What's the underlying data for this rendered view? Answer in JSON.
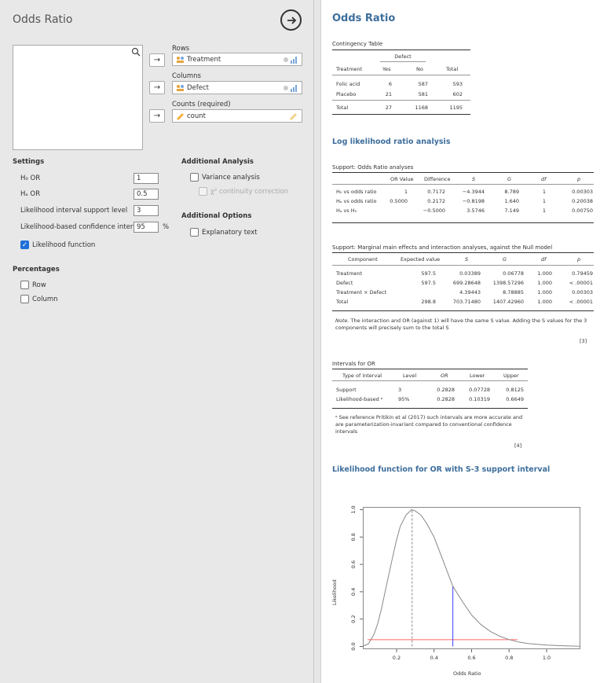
{
  "left": {
    "title": "Odds Ratio",
    "rows_label": "Rows",
    "rows_value": "Treatment",
    "columns_label": "Columns",
    "columns_value": "Defect",
    "counts_label": "Counts (required)",
    "counts_value": "count",
    "arrow": "→",
    "settings": {
      "title": "Settings",
      "h0_label": "H₀ OR",
      "h0_value": "1",
      "ha_label": "Hₐ OR",
      "ha_value": "0.5",
      "support_label": "Likelihood interval support level",
      "support_value": "3",
      "ci_label": "Likelihood-based confidence interval",
      "ci_value": "95",
      "ci_unit": "%",
      "lf_label": "Likelihood function",
      "lf_checked": true
    },
    "additional_analysis": {
      "title": "Additional Analysis",
      "variance_label": "Variance analysis",
      "chi_label": "χ² continuity correction"
    },
    "additional_options": {
      "title": "Additional Options",
      "explanatory_label": "Explanatory text"
    },
    "percentages": {
      "title": "Percentages",
      "row_label": "Row",
      "column_label": "Column"
    }
  },
  "results": {
    "title": "Odds Ratio",
    "contingency": {
      "caption": "Contingency Table",
      "group_header": "Defect",
      "headers": [
        "Treatment",
        "Yes",
        "No",
        "Total"
      ],
      "rows": [
        [
          "Folic acid",
          "6",
          "587",
          "593"
        ],
        [
          "Placebo",
          "21",
          "581",
          "602"
        ]
      ],
      "total": [
        "Total",
        "27",
        "1168",
        "1195"
      ]
    },
    "llr_title": "Log likelihood ratio analysis",
    "support": {
      "caption": "Support: Odds Ratio analyses",
      "headers": [
        "",
        "OR Value",
        "Difference",
        "S",
        "G",
        "df",
        "p"
      ],
      "rows": [
        [
          "H₀ vs odds ratio",
          "1",
          "0.7172",
          "−4.3944",
          "8.789",
          "1",
          "0.00303"
        ],
        [
          "Hₐ vs odds ratio",
          "0.5000",
          "0.2172",
          "−0.8198",
          "1.640",
          "1",
          "0.20038"
        ],
        [
          "Hₐ vs H₀",
          "",
          "−0.5000",
          "3.5746",
          "7.149",
          "1",
          "0.00750"
        ]
      ]
    },
    "marginal": {
      "caption": "Support: Marginal main effects and interaction analyses, against the Null model",
      "headers": [
        "Component",
        "Expected value",
        "S",
        "G",
        "df",
        "p"
      ],
      "rows": [
        [
          "Treatment",
          "597.5",
          "0.03389",
          "0.06778",
          "1.000",
          "0.79459"
        ],
        [
          "Defect",
          "597.5",
          "699.28648",
          "1398.57296",
          "1.000",
          "< .00001"
        ],
        [
          "Treatment × Defect",
          "",
          "4.39443",
          "8.78885",
          "1.000",
          "0.00303"
        ],
        [
          "Total",
          "298.8",
          "703.71480",
          "1407.42960",
          "1.000",
          "< .00001"
        ]
      ],
      "note_prefix": "Note.",
      "note": "The interaction and OR (against 1) will have the same S value. Adding the S values for the 3 components will precisely sum to the total S",
      "ref": "[3]"
    },
    "intervals": {
      "caption": "Intervals for OR",
      "headers": [
        "Type of interval",
        "Level",
        "OR",
        "Lower",
        "Upper"
      ],
      "rows": [
        [
          "Support",
          "3",
          "0.2828",
          "0.07728",
          "0.8125"
        ],
        [
          "Likelihood-based ᵃ",
          "95%",
          "0.2828",
          "0.10319",
          "0.6649"
        ]
      ],
      "note": "ᵃ See reference Pritikin et al (2017) such intervals are more accurate and are parameterization-invariant compared to conventional confidence intervals",
      "ref": "[4]"
    },
    "plot_title": "Likelihood function for OR with S-3 support interval"
  },
  "chart_data": {
    "type": "line",
    "xlabel": "Odds Ratio",
    "ylabel": "Likelihood",
    "xlim": [
      0.02,
      1.18
    ],
    "ylim": [
      -0.02,
      1.02
    ],
    "x_ticks": [
      "0.2",
      "0.4",
      "0.6",
      "0.8",
      "1.0"
    ],
    "y_ticks": [
      "0.0",
      "0.2",
      "0.4",
      "0.6",
      "0.8",
      "1.0"
    ],
    "peak_or": 0.2828,
    "support_level_y": 0.05,
    "ha_or": 0.5,
    "ha_likelihood": 0.44,
    "curve": [
      [
        0.02,
        0.0
      ],
      [
        0.05,
        0.02
      ],
      [
        0.08,
        0.09
      ],
      [
        0.1,
        0.17
      ],
      [
        0.12,
        0.28
      ],
      [
        0.15,
        0.47
      ],
      [
        0.18,
        0.66
      ],
      [
        0.2,
        0.78
      ],
      [
        0.22,
        0.88
      ],
      [
        0.25,
        0.96
      ],
      [
        0.28,
        1.0
      ],
      [
        0.3,
        0.99
      ],
      [
        0.33,
        0.96
      ],
      [
        0.36,
        0.9
      ],
      [
        0.4,
        0.8
      ],
      [
        0.45,
        0.62
      ],
      [
        0.5,
        0.44
      ],
      [
        0.55,
        0.33
      ],
      [
        0.6,
        0.23
      ],
      [
        0.65,
        0.16
      ],
      [
        0.7,
        0.11
      ],
      [
        0.75,
        0.075
      ],
      [
        0.8,
        0.05
      ],
      [
        0.85,
        0.033
      ],
      [
        0.9,
        0.022
      ],
      [
        1.0,
        0.01
      ],
      [
        1.1,
        0.004
      ],
      [
        1.18,
        0.002
      ]
    ],
    "colors": {
      "curve": "#888888",
      "peak": "#888888",
      "ha": "#4040ff",
      "support": "#ff6666"
    }
  }
}
